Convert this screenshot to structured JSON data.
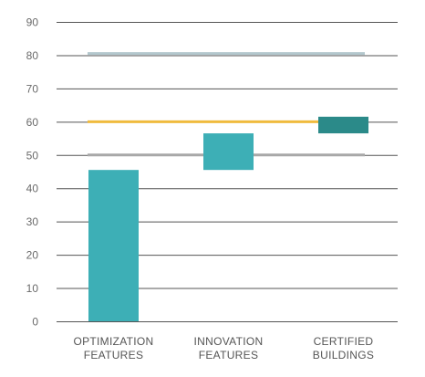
{
  "chart_data": {
    "type": "bar",
    "subtype": "waterfall",
    "categories": [
      [
        "OPTIMIZATION",
        "FEATURES"
      ],
      [
        "INNOVATION",
        "FEATURES"
      ],
      [
        "CERTIFIED",
        "BUILDINGS"
      ]
    ],
    "bars": [
      {
        "start": 0,
        "end": 45.5
      },
      {
        "start": 45.5,
        "end": 56.5
      },
      {
        "start": 56.5,
        "end": 61.5
      }
    ],
    "bar_colors": [
      "#3dafb6",
      "#3dafb6",
      "#2b8a89"
    ],
    "reference_lines": [
      {
        "value": 80.5,
        "color": "#b3c7cd"
      },
      {
        "value": 60,
        "color": "#f0bb3e"
      },
      {
        "value": 50,
        "color": "#a8a8a8"
      }
    ],
    "yticks": [
      0,
      10,
      20,
      30,
      40,
      50,
      60,
      70,
      80,
      90
    ],
    "ylim": [
      0,
      90
    ],
    "grid": true,
    "gridline_color": "#555555",
    "title": "",
    "xlabel": "",
    "ylabel": ""
  }
}
